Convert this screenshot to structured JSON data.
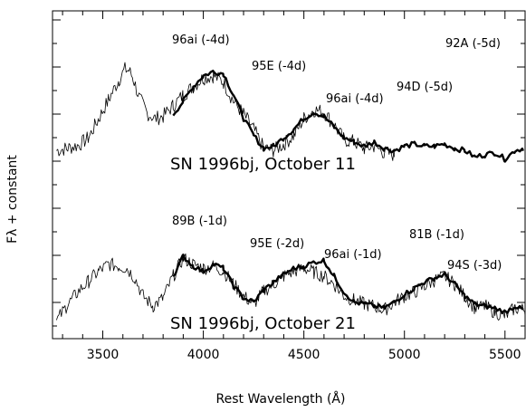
{
  "chart_data": {
    "type": "line",
    "xlabel": "Rest Wavelength  (Å)",
    "ylabel": "Fλ + constant",
    "xlim": [
      3250,
      5600
    ],
    "x_ticks": [
      3500,
      4000,
      4500,
      5000,
      5500
    ],
    "y_axis_values": "none (arbitrary offset)",
    "grid": false,
    "panels": [
      {
        "name": "SN 1996bj, October 11",
        "observed": {
          "x": [
            3270,
            3320,
            3380,
            3430,
            3480,
            3530,
            3580,
            3610,
            3630,
            3650,
            3680,
            3720,
            3760,
            3800,
            3850,
            3900,
            3950,
            4000,
            4050,
            4100,
            4150,
            4200,
            4250,
            4300,
            4350,
            4400,
            4450,
            4500,
            4550,
            4600,
            4650,
            4700,
            4750,
            4800,
            4850,
            4900,
            4950
          ],
          "y": [
            0.1,
            0.12,
            0.15,
            0.22,
            0.4,
            0.58,
            0.76,
            0.86,
            0.85,
            0.78,
            0.6,
            0.45,
            0.4,
            0.42,
            0.52,
            0.62,
            0.7,
            0.78,
            0.8,
            0.74,
            0.56,
            0.44,
            0.3,
            0.12,
            0.1,
            0.16,
            0.24,
            0.4,
            0.48,
            0.46,
            0.34,
            0.2,
            0.18,
            0.12,
            0.14,
            0.08,
            0.06
          ]
        },
        "templates": [
          {
            "name": "96ai (-4d)"
          },
          {
            "name": "95E (-4d)"
          },
          {
            "name": "96ai (-4d)"
          },
          {
            "name": "94D (-5d)"
          },
          {
            "name": "92A (-5d)"
          }
        ],
        "template_composite": {
          "x": [
            3850,
            3900,
            3950,
            4000,
            4050,
            4100,
            4150,
            4200,
            4250,
            4300,
            4350,
            4400,
            4450,
            4500,
            4550,
            4600,
            4650,
            4700,
            4750,
            4800,
            4850,
            4900,
            4950,
            5000,
            5050,
            5100,
            5150,
            5200,
            5250,
            5300,
            5350,
            5400,
            5450,
            5500,
            5550,
            5590
          ],
          "y": [
            0.44,
            0.56,
            0.7,
            0.8,
            0.84,
            0.82,
            0.62,
            0.4,
            0.24,
            0.12,
            0.14,
            0.22,
            0.3,
            0.4,
            0.46,
            0.42,
            0.32,
            0.22,
            0.18,
            0.14,
            0.18,
            0.12,
            0.1,
            0.14,
            0.16,
            0.14,
            0.14,
            0.16,
            0.12,
            0.1,
            0.04,
            0.06,
            0.08,
            0.02,
            0.1,
            0.12
          ]
        }
      },
      {
        "name": "SN 1996bj, October 21",
        "observed": {
          "x": [
            3270,
            3320,
            3380,
            3430,
            3480,
            3530,
            3580,
            3620,
            3660,
            3700,
            3750,
            3800,
            3850,
            3900,
            3950,
            4000,
            4050,
            4100,
            4150,
            4200,
            4250,
            4300,
            4350,
            4400,
            4450,
            4500,
            4550,
            4600,
            4650,
            4700,
            4750,
            4800,
            4850,
            4900,
            4950,
            5000,
            5050,
            5100,
            5150,
            5200,
            5250,
            5300,
            5350,
            5400,
            5450,
            5500,
            5550,
            5600
          ],
          "y": [
            0.05,
            0.2,
            0.35,
            0.45,
            0.55,
            0.62,
            0.6,
            0.58,
            0.48,
            0.3,
            0.2,
            0.28,
            0.5,
            0.68,
            0.62,
            0.58,
            0.6,
            0.55,
            0.42,
            0.3,
            0.22,
            0.35,
            0.42,
            0.5,
            0.55,
            0.58,
            0.54,
            0.5,
            0.42,
            0.3,
            0.26,
            0.22,
            0.2,
            0.16,
            0.24,
            0.3,
            0.34,
            0.4,
            0.46,
            0.5,
            0.42,
            0.3,
            0.18,
            0.2,
            0.14,
            0.1,
            0.18,
            0.16
          ]
        },
        "templates": [
          {
            "name": "89B (-1d)"
          },
          {
            "name": "95E (-2d)"
          },
          {
            "name": "96ai (-1d)"
          },
          {
            "name": "81B (-1d)"
          },
          {
            "name": "94S (-3d)"
          }
        ],
        "template_composite": {
          "x": [
            3850,
            3900,
            3950,
            4000,
            4050,
            4100,
            4150,
            4200,
            4250,
            4300,
            4350,
            4400,
            4450,
            4500,
            4550,
            4600,
            4650,
            4700,
            4750,
            4800,
            4850,
            4900,
            4950,
            5000,
            5050,
            5100,
            5150,
            5200,
            5250,
            5300,
            5350,
            5400,
            5450,
            5500,
            5550,
            5590
          ],
          "y": [
            0.5,
            0.7,
            0.6,
            0.55,
            0.62,
            0.58,
            0.4,
            0.28,
            0.24,
            0.36,
            0.44,
            0.52,
            0.58,
            0.6,
            0.64,
            0.66,
            0.5,
            0.34,
            0.24,
            0.22,
            0.2,
            0.18,
            0.24,
            0.32,
            0.38,
            0.44,
            0.48,
            0.52,
            0.42,
            0.3,
            0.22,
            0.2,
            0.18,
            0.14,
            0.2,
            0.16
          ]
        }
      }
    ]
  }
}
